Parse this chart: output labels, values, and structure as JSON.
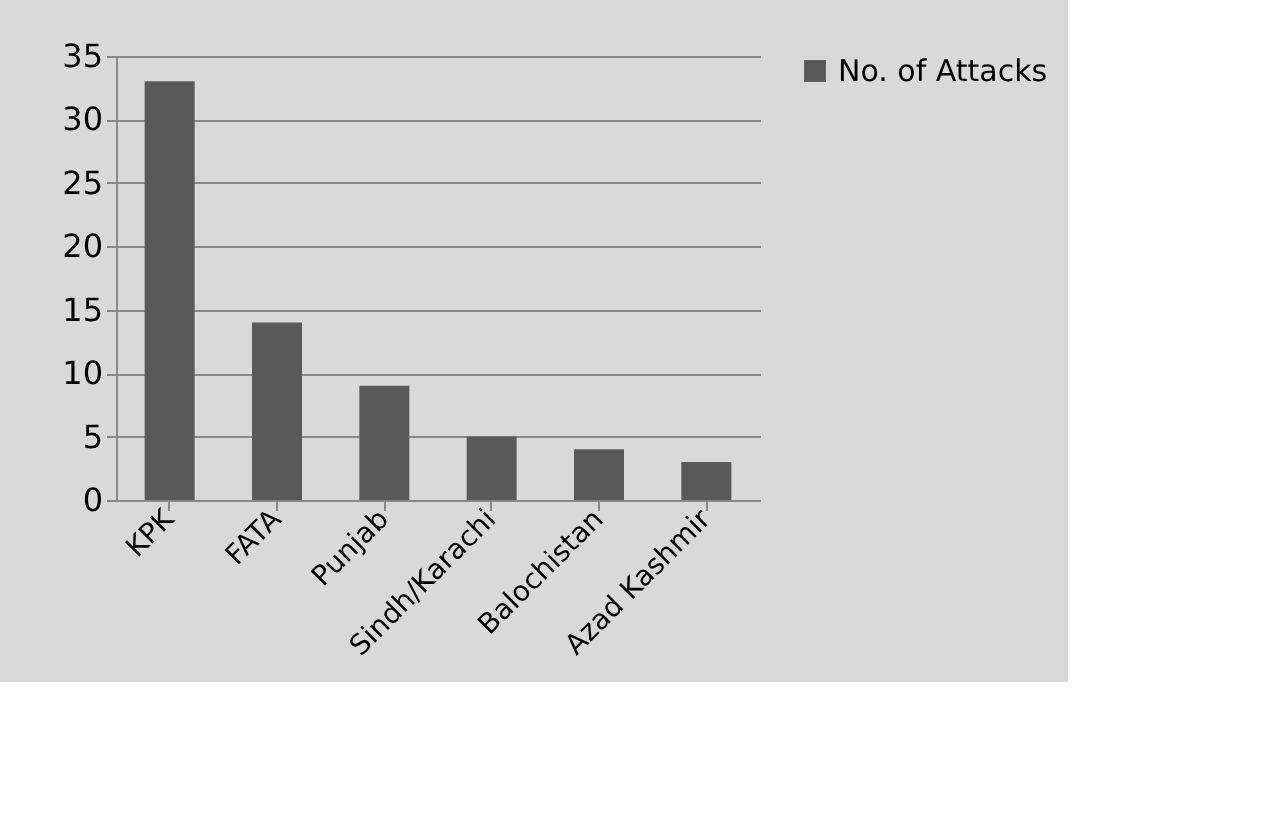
{
  "chart_data": {
    "type": "bar",
    "categories": [
      "KPK",
      "FATA",
      "Punjab",
      "Sindh/Karachi",
      "Balochistan",
      "Azad Kashmir"
    ],
    "series": [
      {
        "name": "No. of Attacks",
        "color": "#595959",
        "values": [
          33,
          14,
          9,
          5,
          4,
          3
        ]
      }
    ],
    "ylim": [
      0,
      35
    ],
    "yticks": [
      0,
      5,
      10,
      15,
      20,
      25,
      30,
      35
    ],
    "grid": "y",
    "legend": "right"
  }
}
